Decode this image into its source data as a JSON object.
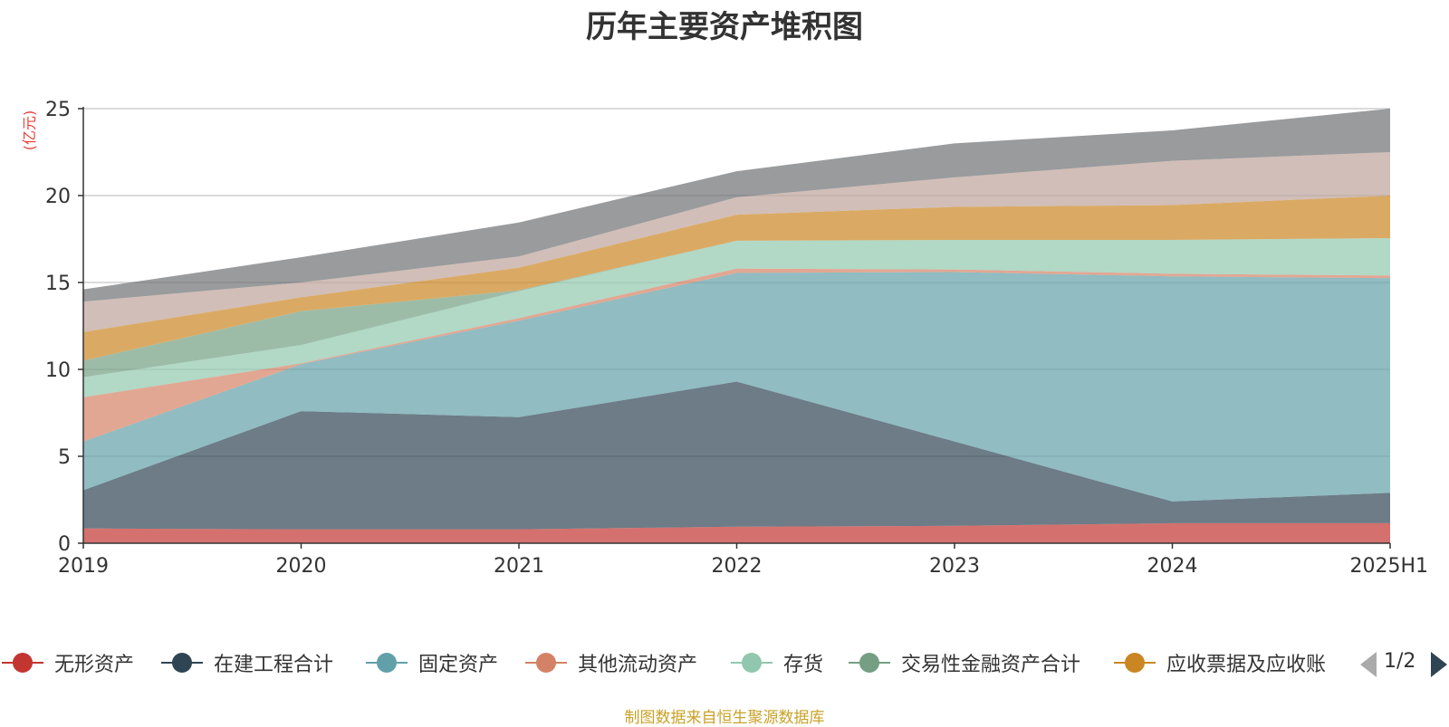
{
  "chart_data": {
    "type": "area",
    "stacked": true,
    "title": "历年主要资产堆积图",
    "unit_label": "(亿元)",
    "categories": [
      "2019",
      "2020",
      "2021",
      "2022",
      "2023",
      "2024",
      "2025H1"
    ],
    "ylim": [
      0,
      25
    ],
    "yticks": [
      0,
      5,
      10,
      15,
      20,
      25
    ],
    "grid": true,
    "legend_position": "bottom",
    "series": [
      {
        "name": "无形资产",
        "color": "#c23531",
        "values": [
          0.85,
          0.8,
          0.8,
          0.95,
          1.0,
          1.15,
          1.15
        ]
      },
      {
        "name": "在建工程合计",
        "color": "#2f4554",
        "values": [
          2.2,
          6.8,
          6.45,
          8.35,
          4.85,
          1.25,
          1.75
        ]
      },
      {
        "name": "固定资产",
        "color": "#61a0a8",
        "values": [
          2.8,
          2.7,
          5.55,
          6.25,
          9.75,
          12.95,
          12.35
        ]
      },
      {
        "name": "其他流动资产",
        "color": "#d48265",
        "values": [
          2.55,
          0.05,
          0.15,
          0.25,
          0.15,
          0.15,
          0.15
        ]
      },
      {
        "name": "存货",
        "color": "#91c7ae",
        "values": [
          1.15,
          1.05,
          1.55,
          1.6,
          1.7,
          1.95,
          2.15
        ]
      },
      {
        "name": "交易性金融资产合计",
        "color": "#749f83",
        "values": [
          0.95,
          1.95,
          0.05,
          0.0,
          0.0,
          0.0,
          0.0
        ]
      },
      {
        "name": "应收票据及应收账",
        "color": "#ca8622",
        "values": [
          1.65,
          0.8,
          1.3,
          1.5,
          1.9,
          2.0,
          2.45
        ]
      },
      {
        "name": "",
        "color": "#bda29a",
        "values": [
          1.75,
          0.85,
          0.65,
          1.0,
          1.7,
          2.55,
          2.5
        ]
      },
      {
        "name": "",
        "color": "#6e7074",
        "values": [
          0.7,
          1.45,
          1.95,
          1.5,
          1.95,
          1.75,
          2.5
        ]
      }
    ]
  },
  "legend": {
    "items": [
      {
        "label": "无形资产",
        "color": "#c23531"
      },
      {
        "label": "在建工程合计",
        "color": "#2f4554"
      },
      {
        "label": "固定资产",
        "color": "#61a0a8"
      },
      {
        "label": "其他流动资产",
        "color": "#d48265"
      },
      {
        "label": "存货",
        "color": "#91c7ae"
      },
      {
        "label": "交易性金融资产合计",
        "color": "#749f83"
      },
      {
        "label": "应收票据及应收账",
        "color": "#ca8622"
      }
    ],
    "page_indicator": "1/2"
  },
  "footer": {
    "source": "制图数据来自恒生聚源数据库"
  }
}
